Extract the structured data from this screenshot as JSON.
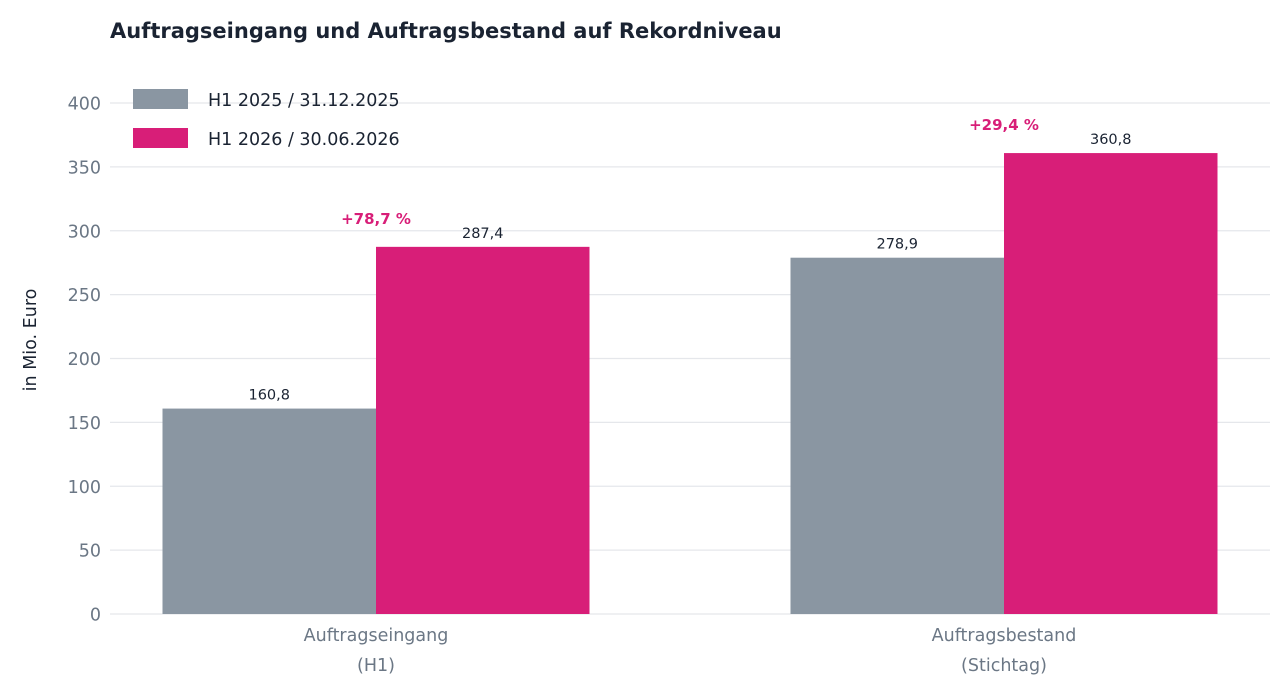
{
  "chart_data": {
    "type": "bar",
    "title": "Auftragseingang und Auftragsbestand auf Rekordniveau",
    "ylabel": "in Mio. Euro",
    "xlabel": "",
    "ylim": [
      0,
      400
    ],
    "yticks": [
      "0",
      "50",
      "100",
      "150",
      "200",
      "250",
      "300",
      "350",
      "400"
    ],
    "grid": true,
    "legend_position": "top-left",
    "categories": [
      [
        "Auftragseingang",
        "(H1)"
      ],
      [
        "Auftragsbestand",
        "(Stichtag)"
      ]
    ],
    "series": [
      {
        "name": "H1 2025 / 31.12.2025",
        "color": "#8a96a2",
        "values": [
          160.8,
          278.9
        ],
        "labels": [
          "160,8",
          "278,9"
        ]
      },
      {
        "name": "H1 2026 / 30.06.2026",
        "color": "#d81e78",
        "values": [
          287.4,
          360.8
        ],
        "labels": [
          "287,4",
          "360,8"
        ]
      }
    ],
    "annotations": [
      {
        "text": "+78,7 %",
        "category": 0,
        "color": "#d81e78"
      },
      {
        "text": "+29,4 %",
        "category": 1,
        "color": "#d81e78"
      }
    ]
  }
}
